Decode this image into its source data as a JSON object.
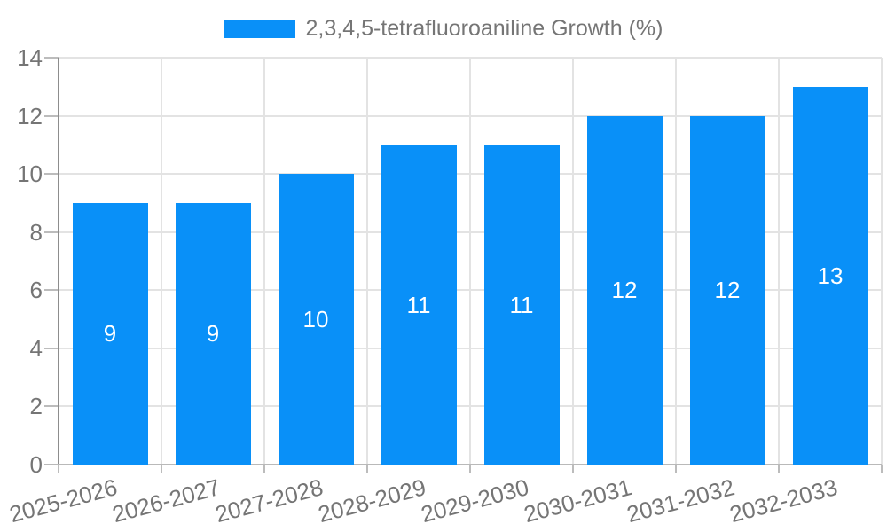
{
  "chart_data": {
    "type": "bar",
    "title": "",
    "legend_label": "2,3,4,5-tetrafluoroaniline Growth (%)",
    "legend_position": "top-center",
    "categories": [
      "2025-2026",
      "2026-2027",
      "2027-2028",
      "2028-2029",
      "2029-2030",
      "2030-2031",
      "2031-2032",
      "2032-2033"
    ],
    "series": [
      {
        "name": "2,3,4,5-tetrafluoroaniline Growth (%)",
        "values": [
          9,
          9,
          10,
          11,
          11,
          12,
          12,
          13
        ],
        "data_labels": [
          "9",
          "9",
          "10",
          "11",
          "11",
          "12",
          "12",
          "13"
        ]
      }
    ],
    "xlabel": "",
    "ylabel": "",
    "ylim": [
      0,
      14
    ],
    "yticks": [
      0,
      2,
      4,
      6,
      8,
      10,
      12,
      14
    ],
    "grid": true,
    "x_label_rotation_deg": -15,
    "colors": {
      "bar": "#0990f8",
      "grid": "#e3e3e3",
      "axis_y_line": "#8d8d8d",
      "axis_x_line": "#b9b9b9",
      "tick_mark": "#bcbcbc",
      "tick_text": "#757575",
      "legend_text": "#757575",
      "bar_label_text": "#ffffff",
      "background": "#ffffff"
    }
  }
}
